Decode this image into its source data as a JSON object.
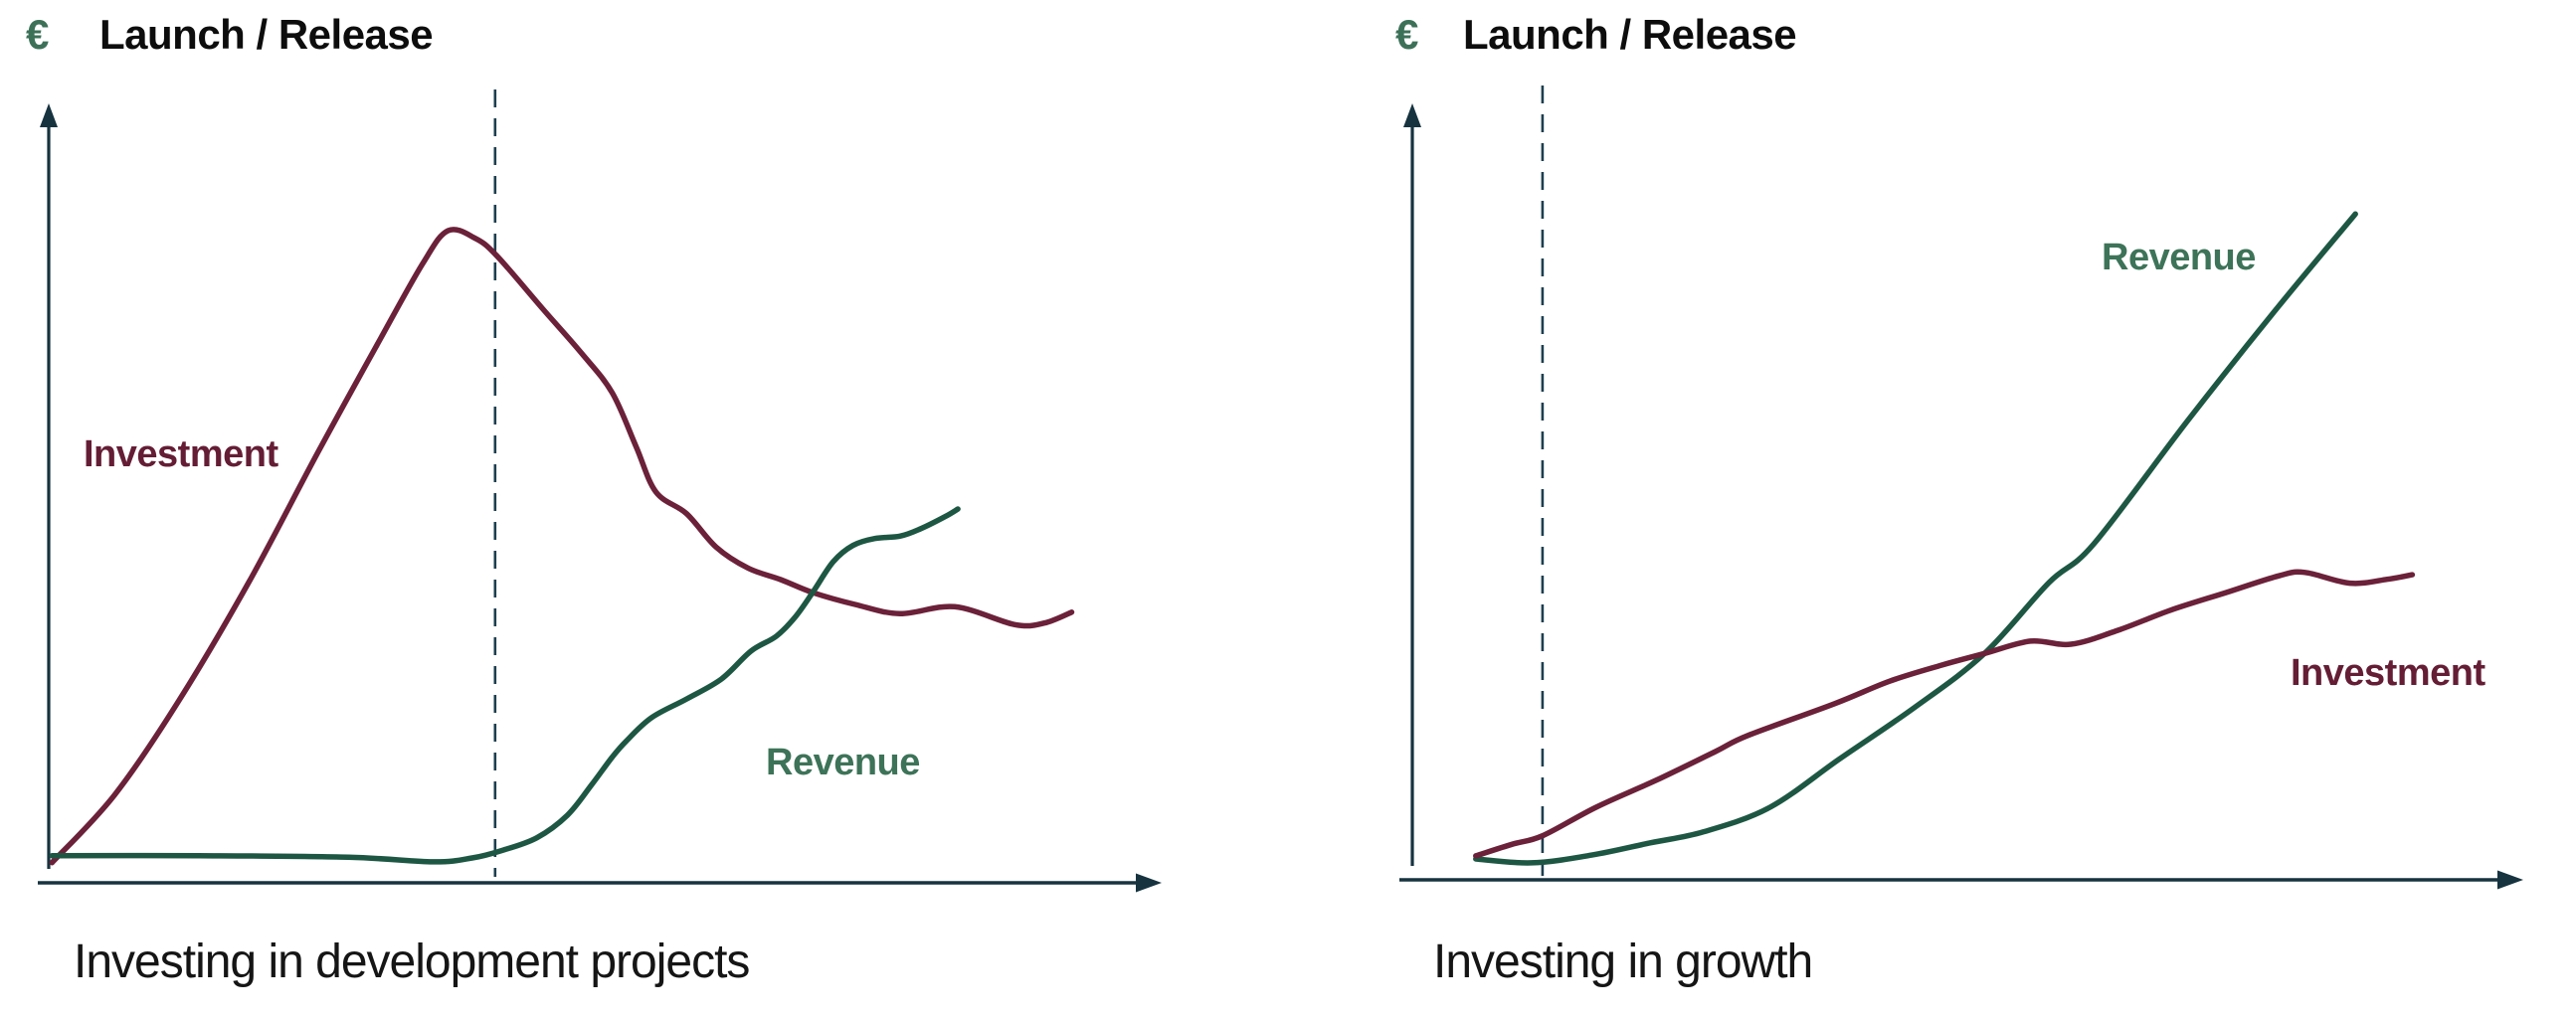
{
  "palette": {
    "background": "#ffffff",
    "axis": "#16333f",
    "dashed_marker": "#1d3f50",
    "investment_line": "#6b2139",
    "investment_label": "#641d35",
    "revenue_line": "#1d5743",
    "revenue_label": "#3d7358",
    "euro_symbol": "#3c7158",
    "title_text": "#0d0d0d",
    "caption_text": "#151515"
  },
  "chart_data": [
    {
      "type": "line",
      "title": "Launch / Release",
      "y_axis_symbol": "€",
      "x_axis_label": "",
      "caption": "Investing in development projects",
      "axes": {
        "style": "arrow-ended, no ticks, no numeric scale (qualitative time vs €)",
        "x_ticks": [],
        "y_ticks": []
      },
      "launch_marker": {
        "style": "dashed-vertical-line",
        "x_pct": 40.8,
        "meaning": "Launch / Release moment"
      },
      "series": [
        {
          "name": "Investment",
          "color": "#6b2139",
          "description": "Bell-shaped: rises steeply before launch, peaks just before the launch line, then declines and flattens with small wiggles.",
          "points_pct": [
            [
              0.3,
              2.6
            ],
            [
              6.0,
              11.3
            ],
            [
              11.9,
              23.5
            ],
            [
              18.3,
              38.8
            ],
            [
              24.6,
              55.5
            ],
            [
              30.1,
              69.6
            ],
            [
              34.2,
              79.9
            ],
            [
              36.5,
              84.1
            ],
            [
              39.0,
              83.1
            ],
            [
              41.0,
              80.8
            ],
            [
              45.1,
              74.1
            ],
            [
              48.7,
              68.3
            ],
            [
              51.5,
              63.2
            ],
            [
              53.7,
              56.2
            ],
            [
              55.5,
              50.4
            ],
            [
              58.3,
              47.6
            ],
            [
              61.0,
              43.3
            ],
            [
              63.9,
              40.6
            ],
            [
              66.9,
              39.1
            ],
            [
              69.9,
              37.4
            ],
            [
              73.7,
              35.9
            ],
            [
              77.8,
              34.7
            ],
            [
              82.8,
              35.6
            ],
            [
              88.3,
              33.3
            ],
            [
              91.0,
              33.5
            ],
            [
              93.5,
              34.9
            ]
          ]
        },
        {
          "name": "Revenue",
          "color": "#1d5743",
          "description": "Flat near zero until launch, then climbs steadily and overtakes Investment late in the period.",
          "points_pct": [
            [
              0.3,
              3.5
            ],
            [
              13.7,
              3.5
            ],
            [
              27.4,
              3.3
            ],
            [
              35.1,
              2.7
            ],
            [
              38.7,
              3.2
            ],
            [
              41.5,
              4.2
            ],
            [
              44.6,
              5.8
            ],
            [
              47.4,
              8.7
            ],
            [
              49.6,
              12.6
            ],
            [
              51.5,
              16.2
            ],
            [
              52.8,
              18.3
            ],
            [
              55.1,
              21.3
            ],
            [
              58.3,
              23.7
            ],
            [
              61.5,
              26.3
            ],
            [
              64.2,
              29.9
            ],
            [
              66.5,
              31.8
            ],
            [
              68.3,
              34.4
            ],
            [
              69.9,
              37.6
            ],
            [
              71.7,
              41.4
            ],
            [
              73.5,
              43.5
            ],
            [
              75.5,
              44.4
            ],
            [
              77.8,
              44.7
            ],
            [
              79.6,
              45.6
            ],
            [
              81.9,
              47.2
            ],
            [
              83.1,
              48.2
            ]
          ]
        }
      ]
    },
    {
      "type": "line",
      "title": "Launch / Release",
      "y_axis_symbol": "€",
      "x_axis_label": "",
      "caption": "Investing in growth",
      "axes": {
        "style": "arrow-ended, no ticks, no numeric scale (qualitative time vs €)",
        "x_ticks": [],
        "y_ticks": []
      },
      "launch_marker": {
        "style": "dashed-vertical-line",
        "x_pct": 11.9,
        "meaning": "Launch / Release moment (early, near origin)"
      },
      "series": [
        {
          "name": "Revenue",
          "color": "#1d5743",
          "description": "Starts near zero at early launch, accelerates upward and ends far above Investment (steep straight climb).",
          "points_pct": [
            [
              5.8,
              2.7
            ],
            [
              10.9,
              2.2
            ],
            [
              16.4,
              3.2
            ],
            [
              21.8,
              4.8
            ],
            [
              26.6,
              6.2
            ],
            [
              32.7,
              9.4
            ],
            [
              39.1,
              15.7
            ],
            [
              45.9,
              22.3
            ],
            [
              52.3,
              29.3
            ],
            [
              58.2,
              38.5
            ],
            [
              62.3,
              43.5
            ],
            [
              70.9,
              59.5
            ],
            [
              79.1,
              74.1
            ],
            [
              86.2,
              86.2
            ]
          ]
        },
        {
          "name": "Investment",
          "color": "#6b2139",
          "description": "Grows moderately and steadily after launch, then flattens into a gentle wavy plateau while Revenue overtakes it.",
          "points_pct": [
            [
              5.8,
              3.1
            ],
            [
              9.1,
              4.6
            ],
            [
              11.9,
              5.7
            ],
            [
              16.8,
              9.4
            ],
            [
              22.3,
              12.9
            ],
            [
              27.7,
              16.6
            ],
            [
              30.7,
              18.7
            ],
            [
              38.6,
              22.8
            ],
            [
              43.6,
              25.7
            ],
            [
              48.4,
              27.8
            ],
            [
              52.3,
              29.3
            ],
            [
              56.5,
              30.9
            ],
            [
              60.2,
              30.5
            ],
            [
              64.5,
              32.3
            ],
            [
              69.3,
              34.9
            ],
            [
              74.4,
              37.2
            ],
            [
              79.3,
              39.4
            ],
            [
              81.6,
              39.8
            ],
            [
              85.7,
              38.4
            ],
            [
              89.1,
              38.9
            ],
            [
              91.4,
              39.5
            ]
          ]
        }
      ]
    }
  ]
}
